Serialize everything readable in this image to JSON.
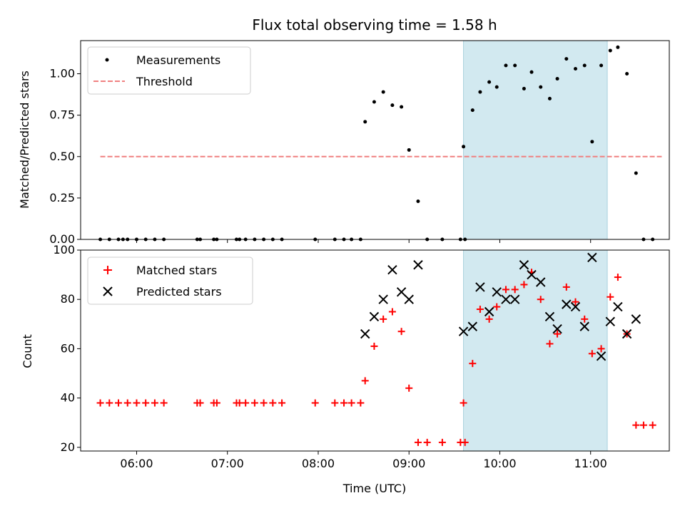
{
  "chart_data": [
    {
      "type": "scatter",
      "title": "Flux total observing time = 1.58 h",
      "ylabel": "Matched/Predicted stars",
      "xlim": [
        "05:23",
        "11:52"
      ],
      "ylim": [
        0,
        1.2
      ],
      "yticks": [
        "0.00",
        "0.25",
        "0.50",
        "0.75",
        "1.00"
      ],
      "highlight_span": {
        "x": [
          "09:36",
          "11:11"
        ],
        "color": "#d2e9f0"
      },
      "legend_position": "top-left",
      "series": [
        {
          "name": "Measurements",
          "marker": "dot",
          "color": "#000000",
          "points": [
            [
              "05:36",
              0
            ],
            [
              "05:42",
              0
            ],
            [
              "05:48",
              0
            ],
            [
              "05:51",
              0
            ],
            [
              "05:54",
              0
            ],
            [
              "06:00",
              0
            ],
            [
              "06:06",
              0
            ],
            [
              "06:12",
              0
            ],
            [
              "06:18",
              0
            ],
            [
              "06:40",
              0
            ],
            [
              "06:42",
              0
            ],
            [
              "06:51",
              0
            ],
            [
              "06:53",
              0
            ],
            [
              "07:06",
              0
            ],
            [
              "07:08",
              0
            ],
            [
              "07:12",
              0
            ],
            [
              "07:18",
              0
            ],
            [
              "07:24",
              0
            ],
            [
              "07:30",
              0
            ],
            [
              "07:36",
              0
            ],
            [
              "07:58",
              0
            ],
            [
              "08:11",
              0
            ],
            [
              "08:17",
              0
            ],
            [
              "08:22",
              0
            ],
            [
              "08:28",
              0
            ],
            [
              "08:31",
              0.71
            ],
            [
              "08:37",
              0.83
            ],
            [
              "08:43",
              0.89
            ],
            [
              "08:49",
              0.81
            ],
            [
              "08:55",
              0.8
            ],
            [
              "09:00",
              0.54
            ],
            [
              "09:06",
              0.23
            ],
            [
              "09:12",
              0
            ],
            [
              "09:22",
              0
            ],
            [
              "09:34",
              0
            ],
            [
              "09:37",
              0
            ],
            [
              "09:36",
              0.56
            ],
            [
              "09:42",
              0.78
            ],
            [
              "09:47",
              0.89
            ],
            [
              "09:53",
              0.95
            ],
            [
              "09:58",
              0.92
            ],
            [
              "10:04",
              1.05
            ],
            [
              "10:10",
              1.05
            ],
            [
              "10:16",
              0.91
            ],
            [
              "10:21",
              1.01
            ],
            [
              "10:27",
              0.92
            ],
            [
              "10:33",
              0.85
            ],
            [
              "10:38",
              0.97
            ],
            [
              "10:44",
              1.09
            ],
            [
              "10:50",
              1.03
            ],
            [
              "10:56",
              1.05
            ],
            [
              "11:01",
              0.59
            ],
            [
              "11:07",
              1.05
            ],
            [
              "11:13",
              1.14
            ],
            [
              "11:18",
              1.16
            ],
            [
              "11:24",
              1.0
            ],
            [
              "11:30",
              0.4
            ],
            [
              "11:35",
              0
            ],
            [
              "11:41",
              0
            ]
          ]
        },
        {
          "name": "Threshold",
          "marker": "dashed-line",
          "color": "#f08080",
          "x": [
            "05:36",
            "11:47"
          ],
          "y": 0.5
        }
      ]
    },
    {
      "type": "scatter",
      "ylabel": "Count",
      "xlabel": "Time (UTC)",
      "xlim": [
        "05:23",
        "11:52"
      ],
      "ylim": [
        18.5,
        100
      ],
      "yticks": [
        "20",
        "40",
        "60",
        "80",
        "100"
      ],
      "xticks": [
        "06:00",
        "07:00",
        "08:00",
        "09:00",
        "10:00",
        "11:00"
      ],
      "highlight_span": {
        "x": [
          "09:36",
          "11:11"
        ],
        "color": "#d2e9f0"
      },
      "legend_position": "top-left",
      "series": [
        {
          "name": "Matched stars",
          "marker": "plus",
          "color": "#ff0000",
          "points": [
            [
              "05:36",
              38
            ],
            [
              "05:42",
              38
            ],
            [
              "05:48",
              38
            ],
            [
              "05:54",
              38
            ],
            [
              "06:00",
              38
            ],
            [
              "06:06",
              38
            ],
            [
              "06:12",
              38
            ],
            [
              "06:18",
              38
            ],
            [
              "06:40",
              38
            ],
            [
              "06:42",
              38
            ],
            [
              "06:51",
              38
            ],
            [
              "06:53",
              38
            ],
            [
              "07:06",
              38
            ],
            [
              "07:08",
              38
            ],
            [
              "07:12",
              38
            ],
            [
              "07:18",
              38
            ],
            [
              "07:24",
              38
            ],
            [
              "07:30",
              38
            ],
            [
              "07:36",
              38
            ],
            [
              "07:58",
              38
            ],
            [
              "08:11",
              38
            ],
            [
              "08:17",
              38
            ],
            [
              "08:22",
              38
            ],
            [
              "08:28",
              38
            ],
            [
              "08:31",
              47
            ],
            [
              "08:37",
              61
            ],
            [
              "08:43",
              72
            ],
            [
              "08:49",
              75
            ],
            [
              "08:55",
              67
            ],
            [
              "09:00",
              44
            ],
            [
              "09:06",
              22
            ],
            [
              "09:12",
              22
            ],
            [
              "09:22",
              22
            ],
            [
              "09:34",
              22
            ],
            [
              "09:37",
              22
            ],
            [
              "09:36",
              38
            ],
            [
              "09:42",
              54
            ],
            [
              "09:47",
              76
            ],
            [
              "09:53",
              72
            ],
            [
              "09:58",
              77
            ],
            [
              "10:04",
              84
            ],
            [
              "10:10",
              84
            ],
            [
              "10:16",
              86
            ],
            [
              "10:21",
              91
            ],
            [
              "10:27",
              80
            ],
            [
              "10:33",
              62
            ],
            [
              "10:38",
              66
            ],
            [
              "10:44",
              85
            ],
            [
              "10:50",
              79
            ],
            [
              "10:56",
              72
            ],
            [
              "11:01",
              58
            ],
            [
              "11:07",
              60
            ],
            [
              "11:13",
              81
            ],
            [
              "11:18",
              89
            ],
            [
              "11:24",
              66
            ],
            [
              "11:30",
              29
            ],
            [
              "11:35",
              29
            ],
            [
              "11:41",
              29
            ]
          ]
        },
        {
          "name": "Predicted stars",
          "marker": "x",
          "color": "#000000",
          "points": [
            [
              "08:31",
              66
            ],
            [
              "08:37",
              73
            ],
            [
              "08:43",
              80
            ],
            [
              "08:49",
              92
            ],
            [
              "08:55",
              83
            ],
            [
              "09:00",
              80
            ],
            [
              "09:06",
              94
            ],
            [
              "09:36",
              67
            ],
            [
              "09:42",
              69
            ],
            [
              "09:47",
              85
            ],
            [
              "09:53",
              75
            ],
            [
              "09:58",
              83
            ],
            [
              "10:04",
              80
            ],
            [
              "10:10",
              80
            ],
            [
              "10:16",
              94
            ],
            [
              "10:21",
              90
            ],
            [
              "10:27",
              87
            ],
            [
              "10:33",
              73
            ],
            [
              "10:38",
              68
            ],
            [
              "10:44",
              78
            ],
            [
              "10:50",
              77
            ],
            [
              "10:56",
              69
            ],
            [
              "11:01",
              97
            ],
            [
              "11:07",
              57
            ],
            [
              "11:13",
              71
            ],
            [
              "11:18",
              77
            ],
            [
              "11:24",
              66
            ],
            [
              "11:30",
              72
            ]
          ]
        }
      ]
    }
  ]
}
